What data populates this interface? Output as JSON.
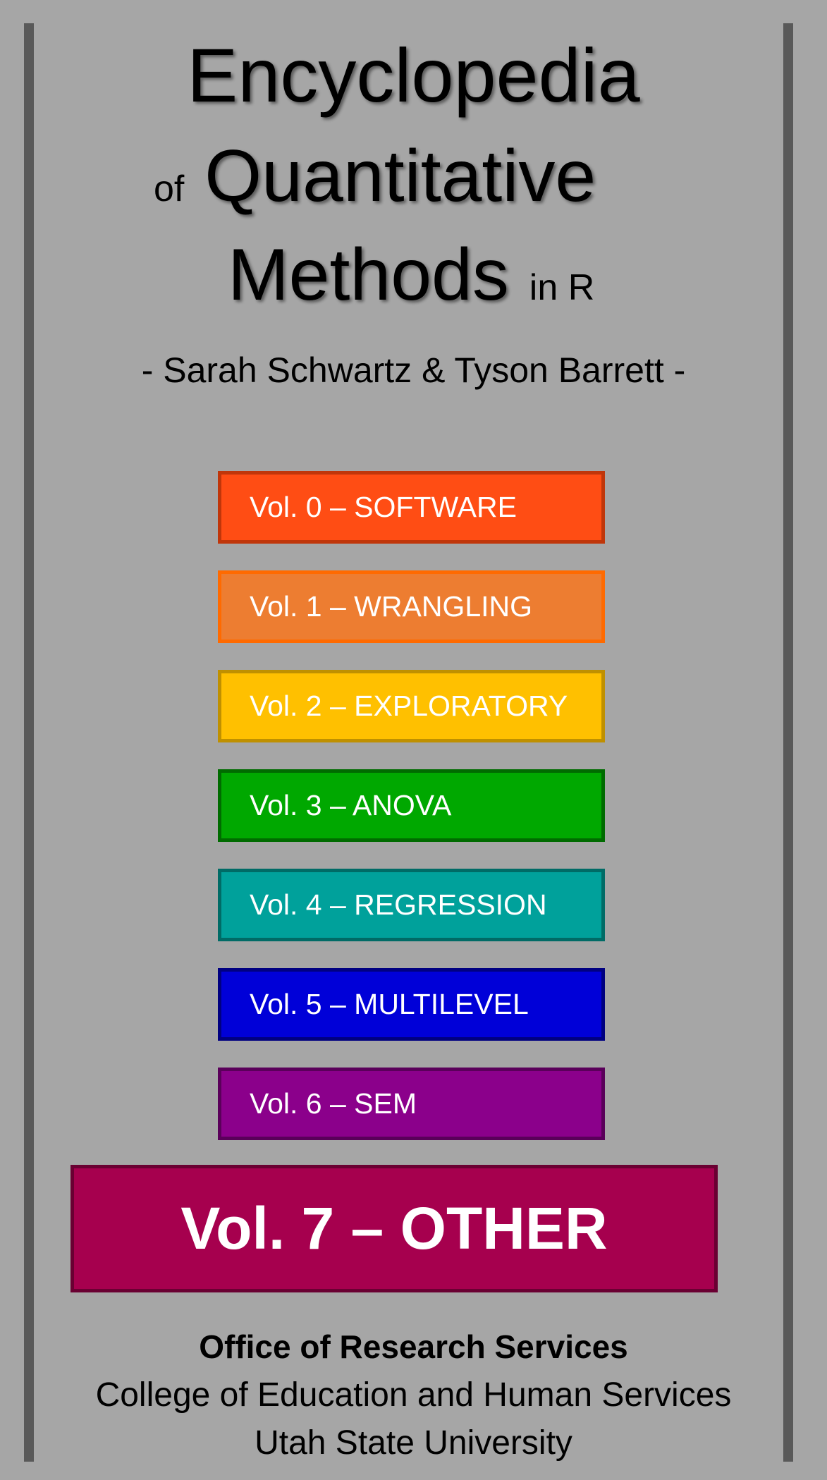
{
  "title": {
    "line1": "Encyclopedia",
    "of": "of",
    "line2": "Quantitative",
    "line3": "Methods",
    "in_r": "in R"
  },
  "authors": "- Sarah Schwartz & Tyson Barrett -",
  "volumes": [
    {
      "label": "Vol. 0 – SOFTWARE",
      "fill": "#ff4d14",
      "border": "#c0360a"
    },
    {
      "label": "Vol. 1 – WRANGLING",
      "fill": "#ed7d31",
      "border": "#ff6a00"
    },
    {
      "label": "Vol. 2 – EXPLORATORY",
      "fill": "#ffc000",
      "border": "#bf9000"
    },
    {
      "label": "Vol. 3 – ANOVA",
      "fill": "#00a800",
      "border": "#006b00"
    },
    {
      "label": "Vol. 4 – REGRESSION",
      "fill": "#00a19b",
      "border": "#006b66"
    },
    {
      "label": "Vol. 5 – MULTILEVEL",
      "fill": "#0000d8",
      "border": "#000080"
    },
    {
      "label": "Vol. 6 – SEM",
      "fill": "#8b008b",
      "border": "#5a005a"
    }
  ],
  "featured_volume": {
    "label": "Vol. 7 – OTHER",
    "fill": "#a6004e",
    "border": "#6a0032"
  },
  "footer": {
    "office": "Office of Research Services",
    "college": "College of Education and Human Services",
    "university": "Utah State University"
  }
}
